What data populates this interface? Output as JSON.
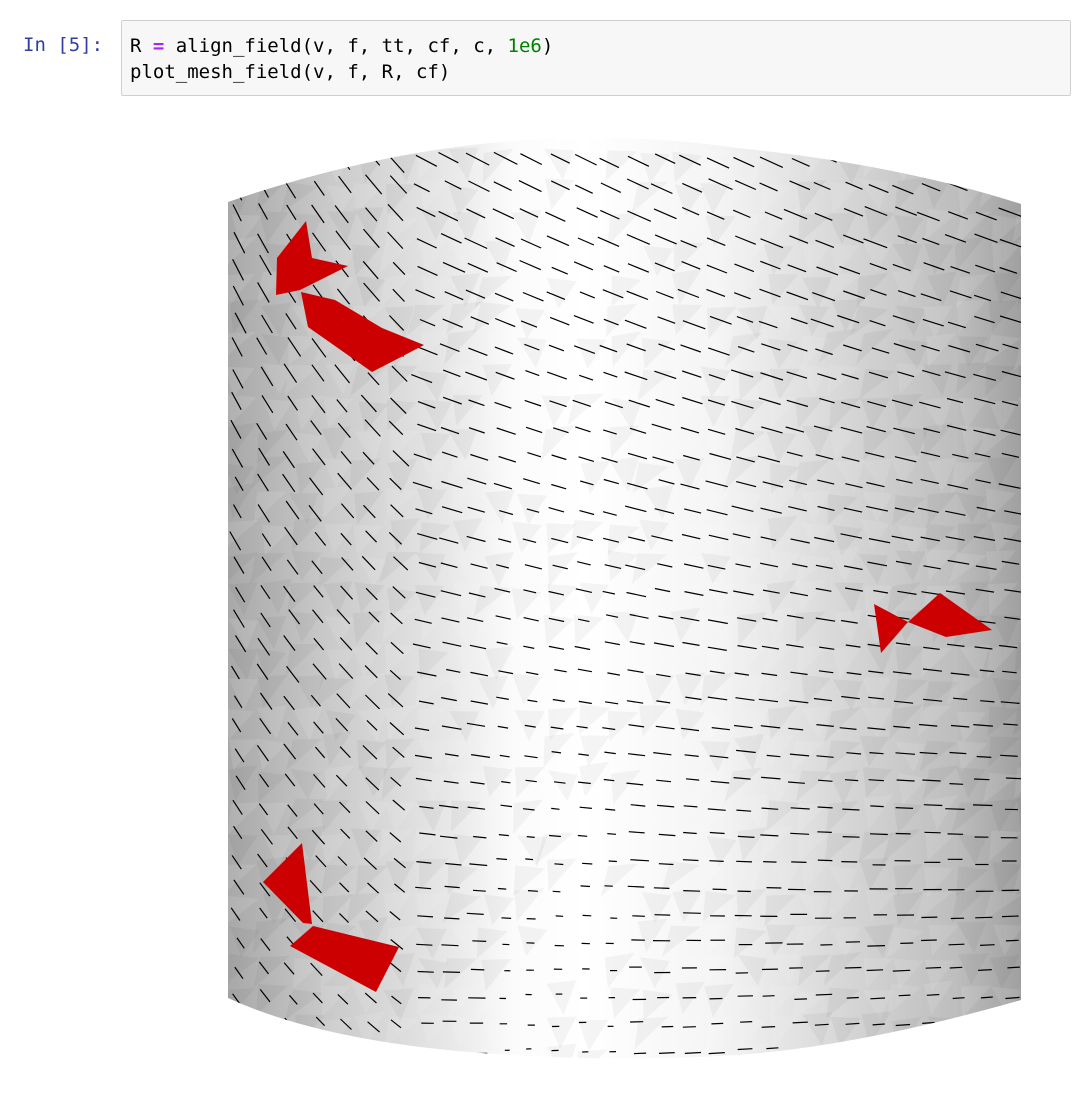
{
  "cell": {
    "prompt": "In [5]:",
    "code": {
      "line1": {
        "a": "R ",
        "op": "=",
        "b": " align_field(v, f, tt, cf, c, ",
        "num": "1e6",
        "c": ")"
      },
      "line2": "plot_mesh_field(v, f, R, cf)"
    }
  },
  "output": {
    "kind": "3d-mesh-cylinder-with-cross-field",
    "colors": {
      "mesh_light": "#ffffff",
      "mesh_dark": "#9e9e9e",
      "field_lines": "#000000",
      "singularities": "#cc0000"
    }
  }
}
